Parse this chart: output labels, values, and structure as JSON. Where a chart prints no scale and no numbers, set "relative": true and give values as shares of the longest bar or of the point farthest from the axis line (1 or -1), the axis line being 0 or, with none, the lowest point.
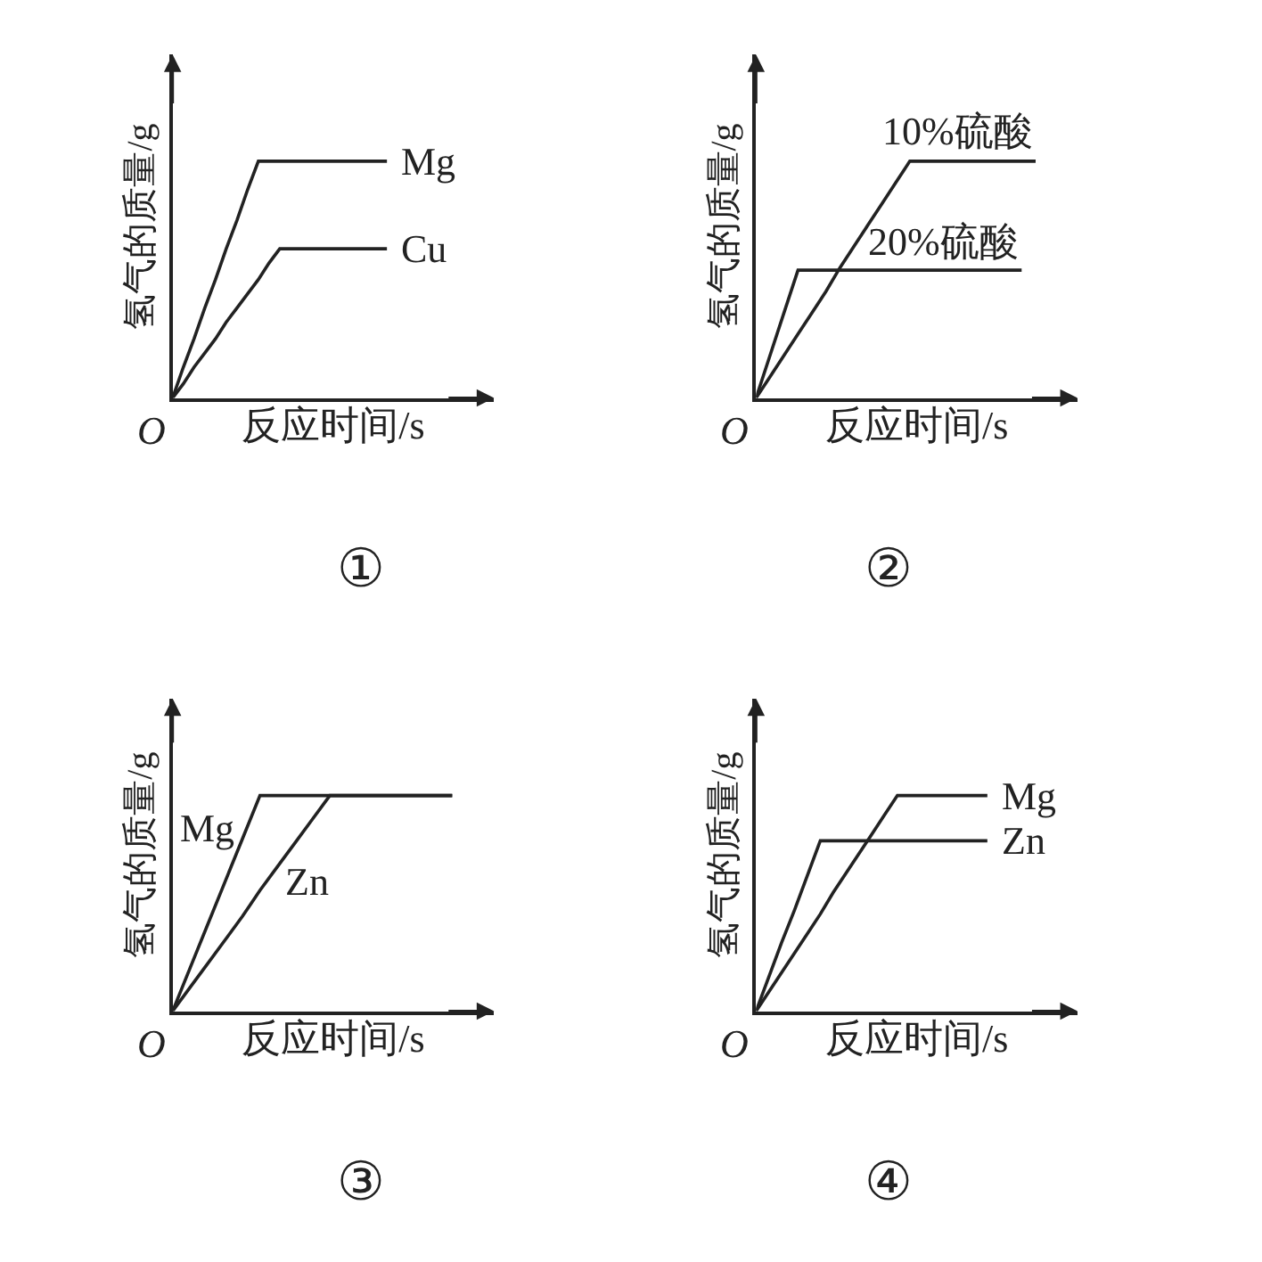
{
  "chart_data": [
    {
      "type": "line",
      "title": "①",
      "xlabel": "反应时间/s",
      "ylabel": "氢气的质量/g",
      "relative": true,
      "legend": false,
      "marker": "none",
      "line_style": "solid",
      "annotations": [
        "O"
      ],
      "categories": [
        null,
        null,
        null,
        null,
        null,
        null,
        null,
        null,
        null,
        null,
        null,
        null,
        null,
        null,
        null,
        null,
        null,
        null,
        null,
        null,
        null
      ],
      "series": [
        {
          "name": "Mg",
          "color": "#222222",
          "values": [
            0,
            0.13,
            0.25,
            0.38,
            0.5,
            0.63,
            0.75,
            0.88,
            1,
            1,
            1,
            1,
            1,
            1,
            1,
            1,
            1,
            1,
            1,
            1,
            1
          ]
        },
        {
          "name": "Cu",
          "color": "#222222",
          "values": [
            0,
            0.06,
            0.13,
            0.19,
            0.25,
            0.32,
            0.38,
            0.44,
            0.5,
            0.57,
            0.63,
            0.63,
            0.63,
            0.63,
            0.63,
            0.63,
            0.63,
            0.63,
            0.63,
            0.63,
            0.63
          ]
        }
      ]
    },
    {
      "type": "line",
      "title": "②",
      "xlabel": "反应时间/s",
      "ylabel": "氢气的质量/g",
      "relative": true,
      "legend": false,
      "marker": "none",
      "line_style": "solid",
      "annotations": [
        "O"
      ],
      "categories": [
        null,
        null,
        null,
        null,
        null,
        null,
        null,
        null,
        null,
        null,
        null,
        null,
        null,
        null,
        null,
        null,
        null,
        null,
        null,
        null,
        null
      ],
      "series": [
        {
          "name": "10%硫酸",
          "color": "#222222",
          "values": [
            0,
            0.09,
            0.18,
            0.27,
            0.36,
            0.45,
            0.55,
            0.64,
            0.73,
            0.82,
            0.91,
            1,
            1,
            1,
            1,
            1,
            1,
            1,
            1,
            1,
            1
          ]
        },
        {
          "name": "20%硫酸",
          "color": "#222222",
          "values": [
            0,
            0.18,
            0.36,
            0.54,
            0.54,
            0.54,
            0.54,
            0.54,
            0.54,
            0.54,
            0.54,
            0.54,
            0.54,
            0.54,
            0.54,
            0.54,
            0.54,
            0.54,
            0.54,
            0.54,
            null
          ]
        }
      ]
    },
    {
      "type": "line",
      "title": "③",
      "xlabel": "反应时间/s",
      "ylabel": "氢气的质量/g",
      "relative": true,
      "legend": false,
      "marker": "none",
      "line_style": "solid",
      "annotations": [
        "O"
      ],
      "categories": [
        null,
        null,
        null,
        null,
        null,
        null,
        null,
        null,
        null,
        null,
        null,
        null,
        null,
        null,
        null,
        null,
        null
      ],
      "series": [
        {
          "name": "Mg",
          "color": "#222222",
          "values": [
            0,
            0.2,
            0.4,
            0.6,
            0.8,
            1,
            1,
            1,
            1,
            1,
            1,
            1,
            1,
            1,
            1,
            1,
            1
          ]
        },
        {
          "name": "Zn",
          "color": "#222222",
          "values": [
            0,
            0.11,
            0.22,
            0.33,
            0.44,
            0.56,
            0.67,
            0.78,
            0.89,
            1,
            1,
            1,
            1,
            1,
            1,
            1,
            1
          ]
        }
      ]
    },
    {
      "type": "line",
      "title": "④",
      "xlabel": "反应时间/s",
      "ylabel": "氢气的质量/g",
      "relative": true,
      "legend": false,
      "marker": "none",
      "line_style": "solid",
      "annotations": [
        "O"
      ],
      "categories": [
        null,
        null,
        null,
        null,
        null,
        null,
        null,
        null,
        null,
        null,
        null,
        null,
        null,
        null,
        null,
        null,
        null,
        null,
        null
      ],
      "series": [
        {
          "name": "Mg",
          "color": "#222222",
          "values": [
            0,
            0.09,
            0.18,
            0.27,
            0.36,
            0.45,
            0.55,
            0.64,
            0.73,
            0.82,
            0.91,
            1,
            1,
            1,
            1,
            1,
            1,
            1,
            1
          ]
        },
        {
          "name": "Zn",
          "color": "#222222",
          "values": [
            0,
            0.16,
            0.32,
            0.47,
            0.63,
            0.79,
            0.79,
            0.79,
            0.79,
            0.79,
            0.79,
            0.79,
            0.79,
            0.79,
            0.79,
            0.79,
            0.79,
            0.79,
            0.79
          ]
        }
      ]
    }
  ]
}
